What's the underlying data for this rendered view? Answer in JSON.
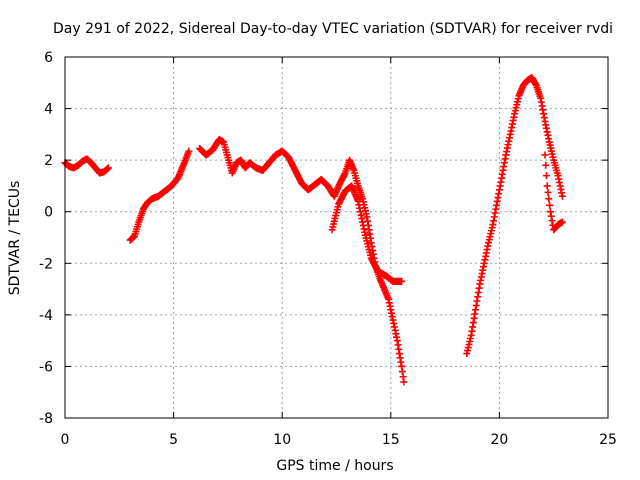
{
  "chart_data": {
    "type": "scatter",
    "title": "Day 291 of 2022, Sidereal Day-to-day VTEC variation (SDTVAR) for receiver rvdi",
    "xlabel": "GPS time / hours",
    "ylabel": "SDTVAR / TECUs",
    "xlim": [
      0,
      25
    ],
    "ylim": [
      -8,
      6
    ],
    "xticks": [
      "0",
      "5",
      "10",
      "15",
      "20",
      "25"
    ],
    "yticks": [
      "-8",
      "-6",
      "-4",
      "-2",
      "0",
      "2",
      "4",
      "6"
    ],
    "grid": true,
    "marker": "+",
    "series": [
      {
        "name": "SDTVAR",
        "color": "#ff0000",
        "segments": [
          [
            [
              0.0,
              1.9
            ],
            [
              0.2,
              1.75
            ],
            [
              0.4,
              1.7
            ],
            [
              0.6,
              1.8
            ],
            [
              0.8,
              1.95
            ],
            [
              1.0,
              2.05
            ],
            [
              1.2,
              1.9
            ],
            [
              1.4,
              1.7
            ],
            [
              1.6,
              1.5
            ],
            [
              1.8,
              1.55
            ],
            [
              2.0,
              1.7
            ]
          ],
          [
            [
              3.0,
              -1.1
            ],
            [
              3.2,
              -0.95
            ],
            [
              3.4,
              -0.4
            ],
            [
              3.6,
              0.1
            ],
            [
              3.8,
              0.35
            ],
            [
              4.0,
              0.5
            ],
            [
              4.3,
              0.6
            ],
            [
              4.6,
              0.8
            ],
            [
              4.9,
              1.0
            ],
            [
              5.2,
              1.3
            ],
            [
              5.5,
              1.9
            ],
            [
              5.7,
              2.35
            ]
          ],
          [
            [
              6.2,
              2.45
            ],
            [
              6.5,
              2.2
            ],
            [
              6.8,
              2.4
            ],
            [
              7.1,
              2.8
            ],
            [
              7.3,
              2.7
            ],
            [
              7.5,
              2.1
            ],
            [
              7.7,
              1.5
            ],
            [
              7.9,
              1.9
            ],
            [
              8.1,
              2.0
            ],
            [
              8.3,
              1.7
            ],
            [
              8.5,
              1.9
            ],
            [
              8.8,
              1.7
            ],
            [
              9.1,
              1.6
            ],
            [
              9.4,
              1.9
            ],
            [
              9.7,
              2.2
            ],
            [
              10.0,
              2.35
            ],
            [
              10.3,
              2.1
            ],
            [
              10.6,
              1.6
            ],
            [
              10.9,
              1.1
            ],
            [
              11.2,
              0.85
            ],
            [
              11.5,
              1.05
            ],
            [
              11.8,
              1.25
            ],
            [
              12.1,
              1.0
            ],
            [
              12.4,
              0.6
            ],
            [
              12.6,
              1.0
            ],
            [
              12.9,
              1.5
            ],
            [
              13.1,
              2.0
            ],
            [
              13.3,
              1.6
            ],
            [
              13.5,
              1.0
            ],
            [
              13.7,
              0.5
            ],
            [
              13.9,
              -0.2
            ],
            [
              14.1,
              -1.2
            ],
            [
              14.3,
              -2.1
            ],
            [
              14.5,
              -2.6
            ],
            [
              14.7,
              -3.0
            ],
            [
              14.9,
              -3.4
            ],
            [
              15.1,
              -4.2
            ],
            [
              15.3,
              -5.0
            ],
            [
              15.5,
              -6.0
            ],
            [
              15.6,
              -6.6
            ]
          ],
          [
            [
              12.3,
              -0.7
            ],
            [
              12.6,
              0.3
            ],
            [
              12.9,
              0.8
            ],
            [
              13.2,
              1.0
            ],
            [
              13.5,
              0.4
            ],
            [
              13.8,
              -0.8
            ],
            [
              14.1,
              -1.8
            ],
            [
              14.4,
              -2.3
            ],
            [
              14.8,
              -2.5
            ],
            [
              15.1,
              -2.7
            ],
            [
              15.5,
              -2.7
            ]
          ],
          [
            [
              18.5,
              -5.5
            ],
            [
              18.7,
              -4.8
            ],
            [
              18.9,
              -3.8
            ],
            [
              19.1,
              -2.8
            ],
            [
              19.3,
              -2.0
            ],
            [
              19.5,
              -1.2
            ],
            [
              19.7,
              -0.5
            ],
            [
              19.9,
              0.4
            ],
            [
              20.1,
              1.3
            ],
            [
              20.3,
              2.2
            ],
            [
              20.5,
              3.0
            ],
            [
              20.7,
              3.8
            ],
            [
              20.9,
              4.5
            ],
            [
              21.1,
              4.9
            ],
            [
              21.3,
              5.1
            ],
            [
              21.5,
              5.2
            ],
            [
              21.7,
              4.9
            ],
            [
              21.9,
              4.4
            ],
            [
              22.1,
              3.5
            ],
            [
              22.3,
              2.7
            ],
            [
              22.5,
              2.0
            ],
            [
              22.7,
              1.4
            ],
            [
              22.9,
              0.6
            ]
          ],
          [
            [
              22.1,
              2.2
            ],
            [
              22.2,
              1.0
            ],
            [
              22.35,
              0.0
            ],
            [
              22.5,
              -0.7
            ],
            [
              22.7,
              -0.5
            ],
            [
              22.9,
              -0.4
            ]
          ]
        ]
      }
    ]
  }
}
